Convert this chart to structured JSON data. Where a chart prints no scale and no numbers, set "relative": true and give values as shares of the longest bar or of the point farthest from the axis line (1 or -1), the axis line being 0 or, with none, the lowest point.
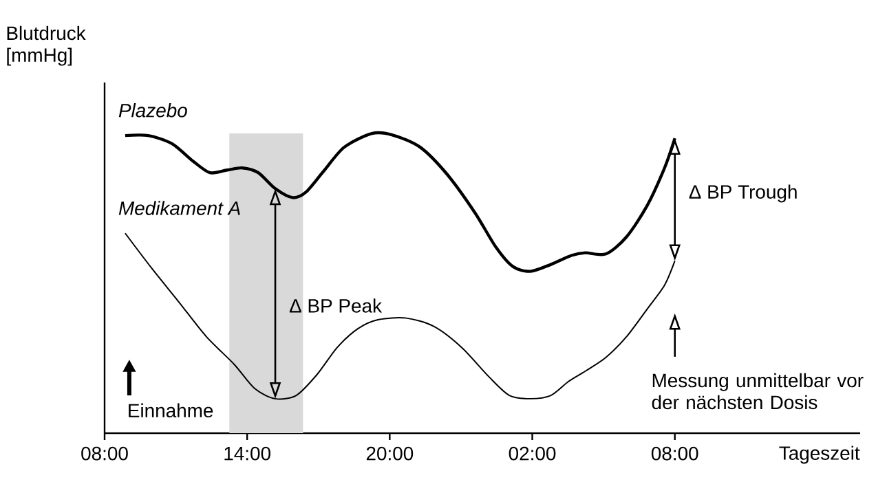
{
  "chart_data": {
    "type": "line",
    "relative": true,
    "xlabel": "Tageszeit",
    "ylabel": "Blutdruck [mmHg]",
    "xlim": [
      "2000-01-01T08:00",
      "2000-01-02T15:48"
    ],
    "xticks": [
      {
        "value": "2000-01-01T08:00",
        "label": "08:00"
      },
      {
        "value": "2000-01-01T14:00",
        "label": "14:00"
      },
      {
        "value": "2000-01-01T20:00",
        "label": "20:00"
      },
      {
        "value": "2000-01-02T02:00",
        "label": "02:00"
      },
      {
        "value": "2000-01-02T08:00",
        "label": "08:00"
      }
    ],
    "legend": "left",
    "grid": false,
    "marker": "none",
    "series": [
      {
        "name": "Plazebo",
        "color": "#000000",
        "x": [
          "2000-01-01T08:52",
          "2000-01-01T09:50",
          "2000-01-01T10:50",
          "2000-01-01T11:43",
          "2000-01-01T12:26",
          "2000-01-01T13:10",
          "2000-01-01T13:48",
          "2000-01-01T14:28",
          "2000-01-01T15:11",
          "2000-01-01T15:55",
          "2000-01-01T16:29",
          "2000-01-01T17:13",
          "2000-01-01T18:05",
          "2000-01-01T19:15",
          "2000-01-01T20:07",
          "2000-01-01T21:17",
          "2000-01-01T22:26",
          "2000-01-01T23:35",
          "2000-01-02T00:28",
          "2000-01-02T01:11",
          "2000-01-02T01:55",
          "2000-01-02T02:47",
          "2000-01-02T03:39",
          "2000-01-02T04:14",
          "2000-01-02T05:06",
          "2000-01-02T05:58",
          "2000-01-02T06:50",
          "2000-01-02T07:34",
          "2000-01-02T08:00"
        ],
        "values": [
          0.993,
          0.993,
          0.966,
          0.908,
          0.869,
          0.878,
          0.885,
          0.869,
          0.816,
          0.786,
          0.805,
          0.874,
          0.954,
          1.0,
          0.995,
          0.954,
          0.862,
          0.736,
          0.621,
          0.556,
          0.54,
          0.563,
          0.593,
          0.602,
          0.598,
          0.655,
          0.759,
          0.885,
          0.984
        ]
      },
      {
        "name": "Medikament A",
        "color": "#000000",
        "x": [
          "2000-01-01T08:52",
          "2000-01-01T09:58",
          "2000-01-01T11:08",
          "2000-01-01T12:17",
          "2000-01-01T13:27",
          "2000-01-01T14:19",
          "2000-01-01T15:11",
          "2000-01-01T16:04",
          "2000-01-01T16:56",
          "2000-01-01T17:48",
          "2000-01-01T18:40",
          "2000-01-01T19:32",
          "2000-01-01T20:42",
          "2000-01-01T21:52",
          "2000-01-01T23:01",
          "2000-01-02T00:10",
          "2000-01-02T01:02",
          "2000-01-02T01:55",
          "2000-01-02T02:47",
          "2000-01-02T03:31",
          "2000-01-02T04:14",
          "2000-01-02T05:06",
          "2000-01-02T05:58",
          "2000-01-02T06:50",
          "2000-01-02T07:34",
          "2000-01-02T08:00"
        ],
        "values": [
          0.667,
          0.552,
          0.437,
          0.322,
          0.23,
          0.149,
          0.115,
          0.126,
          0.195,
          0.287,
          0.349,
          0.379,
          0.384,
          0.356,
          0.287,
          0.189,
          0.126,
          0.115,
          0.126,
          0.172,
          0.207,
          0.253,
          0.322,
          0.414,
          0.494,
          0.575
        ]
      }
    ],
    "bands": [
      {
        "axis": "x",
        "from": "2000-01-01T13:15",
        "to": "2000-01-01T16:21",
        "color": "#d9d9d9"
      }
    ],
    "annotations": [
      "Δ BP Peak",
      "Δ BP Trough",
      "Einnahme",
      "Messung unmittelbar vor der nächsten Dosis"
    ]
  }
}
